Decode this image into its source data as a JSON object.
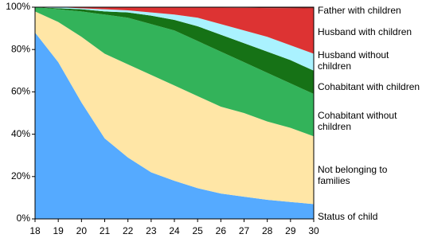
{
  "chart_data": {
    "type": "stacked_area",
    "x": [
      18,
      19,
      20,
      21,
      22,
      23,
      24,
      25,
      26,
      27,
      28,
      29,
      30
    ],
    "xlim": [
      18,
      30
    ],
    "xticks": [
      18,
      19,
      20,
      21,
      22,
      23,
      24,
      25,
      26,
      27,
      28,
      29,
      30
    ],
    "ylim": [
      0,
      100
    ],
    "yticks": [
      {
        "value": 0,
        "label": "0%"
      },
      {
        "value": 20,
        "label": "20%"
      },
      {
        "value": 40,
        "label": "40%"
      },
      {
        "value": 60,
        "label": "60%"
      },
      {
        "value": 80,
        "label": "80%"
      },
      {
        "value": 100,
        "label": "100%"
      }
    ],
    "series": [
      {
        "name": "Status of child",
        "color": "#55aaff",
        "values": [
          88,
          74,
          55,
          38,
          29,
          22,
          18,
          14.5,
          12,
          10.5,
          9,
          8,
          7
        ]
      },
      {
        "name": "Not belonging to families",
        "color": "#ffe6a6",
        "values": [
          10,
          19,
          31,
          40,
          44,
          46,
          45,
          43.5,
          41,
          39.5,
          37,
          35,
          32
        ]
      },
      {
        "name": "Cohabitant without children",
        "color": "#33b35a",
        "values": [
          2,
          6,
          12,
          18.5,
          22,
          24,
          26,
          26,
          26,
          24,
          23,
          21,
          20
        ]
      },
      {
        "name": "Cohabitant with children",
        "color": "#167216",
        "values": [
          0,
          0.5,
          1,
          1.5,
          2.5,
          4,
          5,
          7,
          8,
          9,
          10,
          11,
          11
        ]
      },
      {
        "name": "Husband without children",
        "color": "#aaf2ff",
        "values": [
          0,
          0.5,
          0.5,
          1,
          1,
          1.5,
          2.5,
          4,
          5,
          6,
          7,
          7,
          8
        ]
      },
      {
        "name": "Husband with children",
        "color": "#dd3333",
        "values": [
          0,
          0,
          0.5,
          1,
          1.5,
          2.5,
          3.4,
          4.9,
          7.8,
          10.7,
          13.6,
          17.5,
          21.4
        ]
      },
      {
        "name": "Father with children",
        "color": "#992222",
        "values": [
          0,
          0,
          0,
          0,
          0,
          0,
          0.1,
          0.1,
          0.2,
          0.3,
          0.4,
          0.5,
          0.6
        ]
      }
    ]
  }
}
